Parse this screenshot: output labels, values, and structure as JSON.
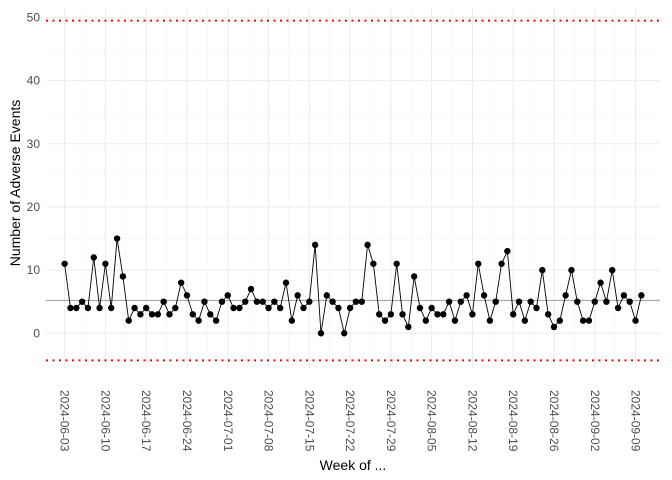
{
  "chart_data": {
    "type": "line",
    "xlabel": "Week of ...",
    "ylabel": "Number of Adverse Events",
    "ylim": [
      -5.5,
      51.5
    ],
    "yticks": [
      0,
      10,
      20,
      30,
      40,
      50
    ],
    "x_start": "2024-06-03",
    "x_end": "2024-09-10",
    "xtick_labels": [
      "2024-06-03",
      "2024-06-10",
      "2024-06-17",
      "2024-06-24",
      "2024-07-01",
      "2024-07-08",
      "2024-07-15",
      "2024-07-22",
      "2024-07-29",
      "2024-08-05",
      "2024-08-12",
      "2024-08-19",
      "2024-08-26",
      "2024-09-02",
      "2024-09-09"
    ],
    "values": [
      11,
      4,
      4,
      5,
      4,
      12,
      4,
      11,
      4,
      15,
      9,
      2,
      4,
      3,
      4,
      3,
      3,
      5,
      3,
      4,
      8,
      6,
      3,
      2,
      5,
      3,
      2,
      5,
      6,
      4,
      4,
      5,
      7,
      5,
      5,
      4,
      5,
      4,
      8,
      2,
      6,
      4,
      5,
      14,
      0,
      6,
      5,
      4,
      0,
      4,
      5,
      5,
      14,
      11,
      3,
      2,
      3,
      11,
      3,
      1,
      9,
      4,
      2,
      4,
      3,
      3,
      5,
      2,
      5,
      6,
      3,
      11,
      6,
      2,
      5,
      11,
      13,
      3,
      5,
      2,
      5,
      4,
      10,
      3,
      1,
      2,
      6,
      10,
      5,
      2,
      2,
      5,
      8,
      5,
      10,
      4,
      6,
      5,
      2,
      6
    ],
    "center_line": 5.2,
    "upper_limit": 49.5,
    "lower_limit": -4.3,
    "colors": {
      "points": "#000000",
      "line": "#000000",
      "center_line": "#a8a8a8",
      "limits": "#ff0000",
      "grid": "#ebebeb"
    },
    "grid": true,
    "legend": "none"
  }
}
